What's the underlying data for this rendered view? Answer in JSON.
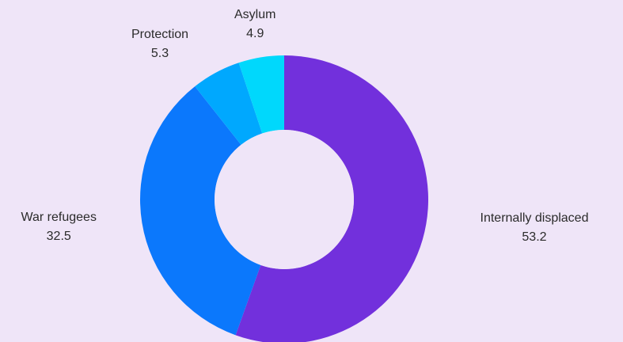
{
  "chart_data": {
    "type": "pie",
    "style": "donut",
    "slices": [
      {
        "label": "Internally displaced",
        "value": 53.2,
        "color": "#7230dc"
      },
      {
        "label": "War refugees",
        "value": 32.5,
        "color": "#0b78fc"
      },
      {
        "label": "Protection",
        "value": 5.3,
        "color": "#00a8fe"
      },
      {
        "label": "Asylum",
        "value": 4.9,
        "color": "#00d8fc"
      }
    ],
    "legend": "none",
    "data_labels": "outside"
  }
}
